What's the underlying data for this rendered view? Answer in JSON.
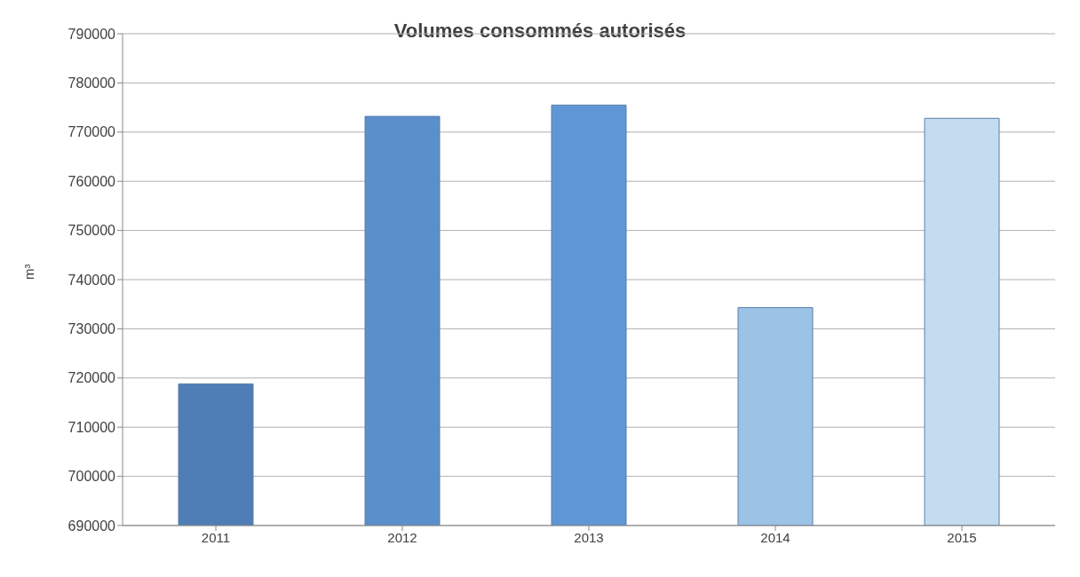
{
  "chart_data": {
    "type": "bar",
    "title": "Volumes consommés autorisés",
    "ylabel": "m³",
    "categories": [
      "2011",
      "2012",
      "2013",
      "2014",
      "2015"
    ],
    "values": [
      718800,
      773200,
      775500,
      734300,
      772800
    ],
    "colors": [
      "#4f7db5",
      "#5b8fcc",
      "#5f97d6",
      "#9cc2e6",
      "#c3dcf0"
    ],
    "ylim": [
      690000,
      790000
    ],
    "yticks": [
      690000,
      700000,
      710000,
      720000,
      730000,
      740000,
      750000,
      760000,
      770000,
      780000,
      790000
    ],
    "grid": "y"
  }
}
